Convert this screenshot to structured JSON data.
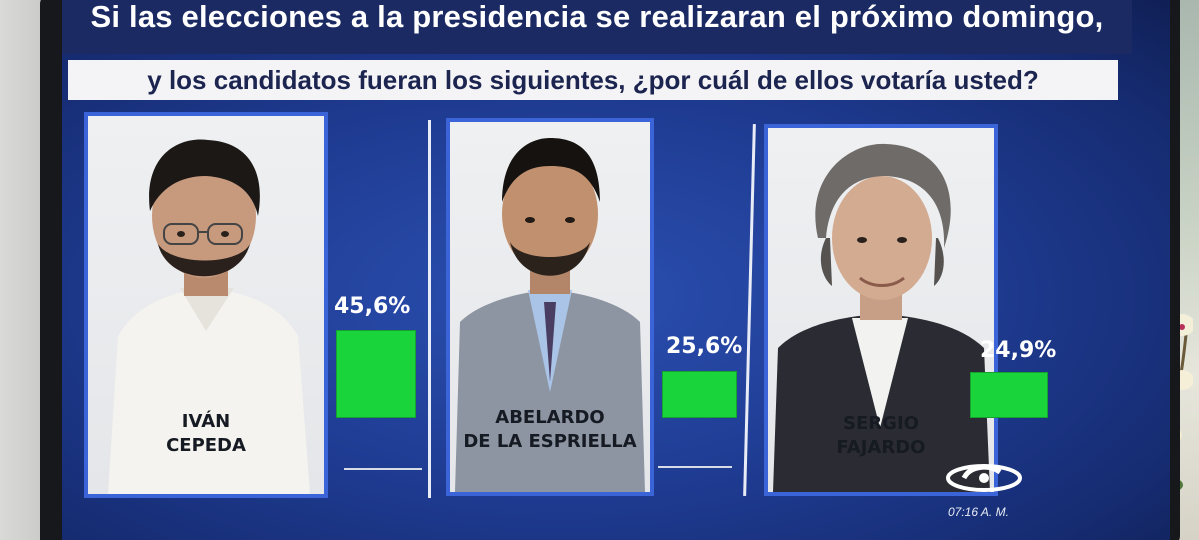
{
  "question": {
    "line1": "Si las elecciones a la presidencia se realizaran el próximo domingo,",
    "line2": "y los candidatos fueran los siguientes, ¿por cuál de ellos votaría usted?"
  },
  "candidates": [
    {
      "name_line1": "IVÁN",
      "name_line2": "CEPEDA",
      "percent": 45.6,
      "percent_label": "45,6%"
    },
    {
      "name_line1": "ABELARDO",
      "name_line2": "DE LA ESPRIELLA",
      "percent": 25.6,
      "percent_label": "25,6%"
    },
    {
      "name_line1": "SERGIO",
      "name_line2": "FAJARDO",
      "percent": 24.9,
      "percent_label": "24,9%"
    }
  ],
  "broadcast": {
    "time": "07:16 A. M."
  },
  "colors": {
    "screen_blue": "#1f3c93",
    "bar_green": "#19d43b",
    "card_border": "#3a64d8"
  }
}
